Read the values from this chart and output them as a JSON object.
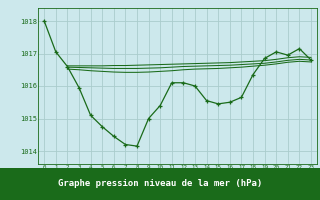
{
  "background_color": "#cce8ec",
  "grid_color": "#aacccc",
  "line_color": "#1a6b1a",
  "title": "Graphe pression niveau de la mer (hPa)",
  "xlim": [
    -0.5,
    23.5
  ],
  "ylim": [
    1013.6,
    1018.4
  ],
  "yticks": [
    1014,
    1015,
    1016,
    1017,
    1018
  ],
  "xticks": [
    0,
    1,
    2,
    3,
    4,
    5,
    6,
    7,
    8,
    9,
    10,
    11,
    12,
    13,
    14,
    15,
    16,
    17,
    18,
    19,
    20,
    21,
    22,
    23
  ],
  "line1": {
    "x": [
      0,
      1,
      2,
      3,
      4,
      5,
      6,
      7,
      8,
      9,
      10,
      11,
      12,
      13,
      14,
      15,
      16,
      17,
      18,
      19,
      20,
      21,
      22,
      23
    ],
    "y": [
      1018.0,
      1017.05,
      1016.6,
      1015.95,
      1015.1,
      1014.75,
      1014.45,
      1014.2,
      1014.15,
      1015.0,
      1015.4,
      1016.1,
      1016.1,
      1016.0,
      1015.55,
      1015.45,
      1015.5,
      1015.65,
      1016.35,
      1016.85,
      1017.05,
      1016.95,
      1017.15,
      1016.8
    ]
  },
  "line2": {
    "x": [
      2,
      3,
      4,
      5,
      6,
      7,
      8,
      9,
      10,
      11,
      12,
      13,
      14,
      15,
      16,
      17,
      18,
      19,
      20,
      21,
      22,
      23
    ],
    "y": [
      1016.62,
      1016.62,
      1016.62,
      1016.62,
      1016.63,
      1016.63,
      1016.64,
      1016.65,
      1016.66,
      1016.67,
      1016.68,
      1016.69,
      1016.7,
      1016.71,
      1016.72,
      1016.74,
      1016.76,
      1016.78,
      1016.82,
      1016.87,
      1016.9,
      1016.88
    ]
  },
  "line3": {
    "x": [
      2,
      3,
      4,
      5,
      6,
      7,
      8,
      9,
      10,
      11,
      12,
      13,
      14,
      15,
      16,
      17,
      18,
      19,
      20,
      21,
      22,
      23
    ],
    "y": [
      1016.58,
      1016.57,
      1016.56,
      1016.55,
      1016.54,
      1016.54,
      1016.54,
      1016.55,
      1016.56,
      1016.58,
      1016.6,
      1016.61,
      1016.62,
      1016.63,
      1016.64,
      1016.66,
      1016.68,
      1016.7,
      1016.74,
      1016.79,
      1016.82,
      1016.8
    ]
  },
  "line4": {
    "x": [
      2,
      3,
      4,
      5,
      6,
      7,
      8,
      9,
      10,
      11,
      12,
      13,
      14,
      15,
      16,
      17,
      18,
      19,
      20,
      21,
      22,
      23
    ],
    "y": [
      1016.52,
      1016.5,
      1016.47,
      1016.45,
      1016.43,
      1016.42,
      1016.42,
      1016.43,
      1016.45,
      1016.47,
      1016.5,
      1016.52,
      1016.53,
      1016.54,
      1016.56,
      1016.58,
      1016.61,
      1016.64,
      1016.68,
      1016.73,
      1016.76,
      1016.74
    ]
  },
  "title_bg": "#1a6b1a",
  "title_fg": "#ffffff",
  "title_fontsize": 6.5
}
